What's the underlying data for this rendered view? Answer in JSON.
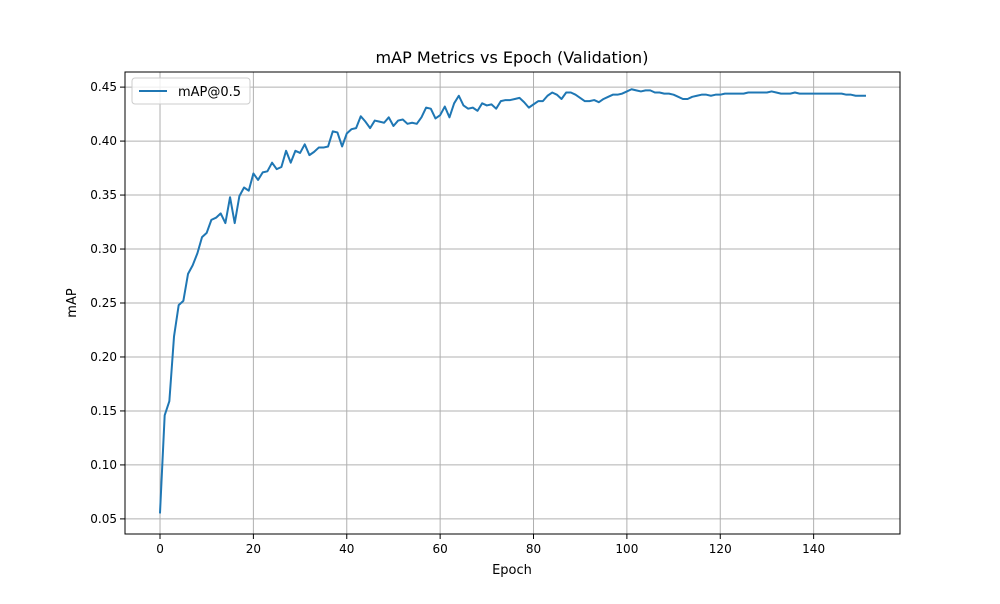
{
  "chart_data": {
    "type": "line",
    "title": "mAP Metrics vs Epoch (Validation)",
    "xlabel": "Epoch",
    "ylabel": "mAP",
    "xlim": [
      -7.5,
      158.5
    ],
    "ylim": [
      0.036,
      0.464
    ],
    "xticks": [
      0,
      20,
      40,
      60,
      80,
      100,
      120,
      140
    ],
    "xtick_labels": [
      "0",
      "20",
      "40",
      "60",
      "80",
      "100",
      "120",
      "140"
    ],
    "yticks": [
      0.05,
      0.1,
      0.15,
      0.2,
      0.25,
      0.3,
      0.35,
      0.4,
      0.45
    ],
    "ytick_labels": [
      "0.05",
      "0.10",
      "0.15",
      "0.20",
      "0.25",
      "0.30",
      "0.35",
      "0.40",
      "0.45"
    ],
    "grid": true,
    "legend_position": "top-left",
    "series": [
      {
        "name": "mAP@0.5",
        "color": "#1f77b4",
        "x": [
          0,
          1,
          2,
          3,
          4,
          5,
          6,
          7,
          8,
          9,
          10,
          11,
          12,
          13,
          14,
          15,
          16,
          17,
          18,
          19,
          20,
          21,
          22,
          23,
          24,
          25,
          26,
          27,
          28,
          29,
          30,
          31,
          32,
          33,
          34,
          35,
          36,
          37,
          38,
          39,
          40,
          41,
          42,
          43,
          44,
          45,
          46,
          47,
          48,
          49,
          50,
          51,
          52,
          53,
          54,
          55,
          56,
          57,
          58,
          59,
          60,
          61,
          62,
          63,
          64,
          65,
          66,
          67,
          68,
          69,
          70,
          71,
          72,
          73,
          74,
          75,
          76,
          77,
          78,
          79,
          80,
          81,
          82,
          83,
          84,
          85,
          86,
          87,
          88,
          89,
          90,
          91,
          92,
          93,
          94,
          95,
          96,
          97,
          98,
          99,
          100,
          101,
          102,
          103,
          104,
          105,
          106,
          107,
          108,
          109,
          110,
          111,
          112,
          113,
          114,
          115,
          116,
          117,
          118,
          119,
          120,
          121,
          122,
          123,
          124,
          125,
          126,
          127,
          128,
          129,
          130,
          131,
          132,
          133,
          134,
          135,
          136,
          137,
          138,
          139,
          140,
          141,
          142,
          143,
          144,
          145,
          146,
          147,
          148,
          149,
          150,
          151
        ],
        "values": [
          0.056,
          0.146,
          0.159,
          0.219,
          0.248,
          0.252,
          0.277,
          0.285,
          0.296,
          0.311,
          0.315,
          0.327,
          0.329,
          0.333,
          0.324,
          0.348,
          0.324,
          0.349,
          0.357,
          0.354,
          0.37,
          0.364,
          0.371,
          0.372,
          0.38,
          0.374,
          0.376,
          0.391,
          0.38,
          0.391,
          0.389,
          0.397,
          0.387,
          0.39,
          0.394,
          0.394,
          0.395,
          0.409,
          0.408,
          0.395,
          0.407,
          0.411,
          0.412,
          0.423,
          0.418,
          0.412,
          0.419,
          0.418,
          0.417,
          0.422,
          0.414,
          0.419,
          0.42,
          0.416,
          0.417,
          0.416,
          0.422,
          0.431,
          0.43,
          0.421,
          0.424,
          0.432,
          0.422,
          0.435,
          0.442,
          0.433,
          0.43,
          0.431,
          0.428,
          0.435,
          0.433,
          0.434,
          0.43,
          0.437,
          0.438,
          0.438,
          0.439,
          0.44,
          0.436,
          0.431,
          0.434,
          0.437,
          0.437,
          0.442,
          0.445,
          0.443,
          0.439,
          0.445,
          0.445,
          0.443,
          0.44,
          0.437,
          0.437,
          0.438,
          0.436,
          0.439,
          0.441,
          0.443,
          0.443,
          0.444,
          0.446,
          0.448,
          0.447,
          0.446,
          0.447,
          0.447,
          0.445,
          0.445,
          0.444,
          0.444,
          0.443,
          0.441,
          0.439,
          0.439,
          0.441,
          0.442,
          0.443,
          0.443,
          0.442,
          0.443,
          0.443,
          0.444,
          0.444,
          0.444,
          0.444,
          0.444,
          0.445,
          0.445,
          0.445,
          0.445,
          0.445,
          0.446,
          0.445,
          0.444,
          0.444,
          0.444,
          0.445,
          0.444,
          0.444,
          0.444,
          0.444,
          0.444,
          0.444,
          0.444,
          0.444,
          0.444,
          0.444,
          0.443,
          0.443,
          0.442,
          0.442,
          0.442
        ]
      }
    ]
  }
}
